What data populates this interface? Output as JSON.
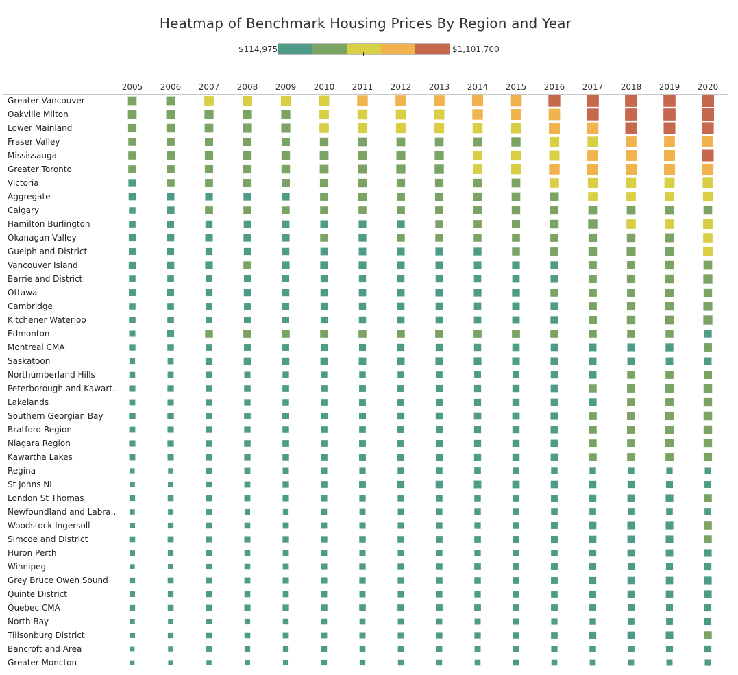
{
  "chart_data": {
    "type": "heatmap",
    "title": "Heatmap of Benchmark Housing Prices By Region and Year",
    "legend": {
      "min_label": "$114,975",
      "max_label": "$1,101,700",
      "min": 114975,
      "max": 1101700,
      "colors": [
        "#4e9c88",
        "#7aa364",
        "#d8cf45",
        "#f1b34d",
        "#c5684e"
      ]
    },
    "x": [
      "2005",
      "2006",
      "2007",
      "2008",
      "2009",
      "2010",
      "2011",
      "2012",
      "2013",
      "2014",
      "2015",
      "2016",
      "2017",
      "2018",
      "2019",
      "2020"
    ],
    "y": [
      "Greater Vancouver",
      "Oakville Milton",
      "Lower Mainland",
      "Fraser Valley",
      "Mississauga",
      "Greater Toronto",
      "Victoria",
      "Aggregate",
      "Calgary",
      "Hamilton Burlington",
      "Okanagan Valley",
      "Guelph and District",
      "Vancouver Island",
      "Barrie and District",
      "Ottawa",
      "Cambridge",
      "Kitchener Waterloo",
      "Edmonton",
      "Montreal CMA",
      "Saskatoon",
      "Northumberland Hills",
      "Peterborough and Kawart..",
      "Lakelands",
      "Southern Georgian Bay",
      "Bratford Region",
      "Niagara Region",
      "Kawartha Lakes",
      "Regina",
      "St Johns NL",
      "London St Thomas",
      "Newfoundland and Labra..",
      "Woodstock Ingersoll",
      "Simcoe and District",
      "Huron Perth",
      "Winnipeg",
      "Grey Bruce Owen Sound",
      "Quinte District",
      "Quebec CMA",
      "North Bay",
      "Tillsonburg District",
      "Bancroft and Area",
      "Greater Moncton"
    ],
    "values": [
      [
        420,
        430,
        520,
        560,
        570,
        640,
        720,
        740,
        750,
        820,
        900,
        1000,
        1050,
        1060,
        1030,
        1100
      ],
      [
        420,
        440,
        480,
        470,
        470,
        530,
        600,
        630,
        660,
        720,
        800,
        900,
        1000,
        1060,
        1050,
        1100
      ],
      [
        380,
        400,
        420,
        470,
        460,
        520,
        560,
        580,
        590,
        620,
        700,
        800,
        880,
        960,
        950,
        980
      ],
      [
        320,
        340,
        360,
        370,
        360,
        390,
        420,
        420,
        420,
        440,
        490,
        580,
        700,
        760,
        780,
        800
      ],
      [
        330,
        350,
        380,
        390,
        400,
        430,
        440,
        460,
        480,
        520,
        580,
        660,
        780,
        790,
        800,
        950
      ],
      [
        330,
        350,
        370,
        380,
        400,
        430,
        450,
        470,
        500,
        540,
        620,
        730,
        800,
        810,
        820,
        840
      ],
      [
        310,
        330,
        350,
        370,
        360,
        380,
        390,
        380,
        380,
        390,
        420,
        510,
        580,
        620,
        640,
        700
      ],
      [
        260,
        280,
        300,
        310,
        300,
        340,
        360,
        350,
        370,
        390,
        420,
        450,
        510,
        520,
        530,
        580
      ],
      [
        200,
        310,
        340,
        330,
        320,
        330,
        330,
        340,
        350,
        360,
        390,
        380,
        420,
        430,
        420,
        410
      ],
      [
        210,
        230,
        250,
        260,
        270,
        290,
        300,
        310,
        320,
        340,
        360,
        400,
        500,
        520,
        530,
        560
      ],
      [
        240,
        260,
        290,
        310,
        300,
        320,
        310,
        320,
        320,
        320,
        330,
        340,
        380,
        400,
        440,
        510
      ],
      [
        220,
        230,
        240,
        240,
        250,
        270,
        280,
        290,
        300,
        310,
        320,
        350,
        400,
        460,
        490,
        540
      ],
      [
        240,
        260,
        300,
        320,
        300,
        310,
        300,
        290,
        290,
        290,
        300,
        310,
        340,
        360,
        390,
        420
      ],
      [
        200,
        210,
        220,
        230,
        230,
        240,
        240,
        250,
        250,
        260,
        270,
        290,
        350,
        380,
        400,
        480
      ],
      [
        220,
        230,
        240,
        250,
        250,
        260,
        270,
        280,
        290,
        300,
        310,
        320,
        340,
        350,
        370,
        390
      ],
      [
        200,
        210,
        220,
        220,
        230,
        240,
        250,
        260,
        260,
        270,
        280,
        300,
        340,
        380,
        400,
        470
      ],
      [
        200,
        210,
        220,
        230,
        230,
        240,
        250,
        260,
        260,
        270,
        280,
        310,
        350,
        400,
        420,
        480
      ],
      [
        180,
        230,
        320,
        340,
        330,
        330,
        330,
        330,
        340,
        340,
        340,
        330,
        330,
        330,
        320,
        310
      ],
      [
        190,
        200,
        210,
        220,
        220,
        230,
        230,
        240,
        240,
        250,
        260,
        260,
        280,
        290,
        310,
        350
      ],
      [
        150,
        170,
        240,
        260,
        250,
        270,
        280,
        290,
        300,
        300,
        290,
        290,
        280,
        280,
        280,
        280
      ],
      [
        160,
        170,
        180,
        180,
        190,
        190,
        200,
        200,
        210,
        220,
        230,
        250,
        290,
        320,
        340,
        360
      ],
      [
        180,
        190,
        200,
        200,
        210,
        210,
        220,
        220,
        230,
        240,
        250,
        270,
        320,
        350,
        360,
        400
      ],
      [
        170,
        180,
        190,
        190,
        200,
        210,
        220,
        220,
        230,
        240,
        250,
        270,
        310,
        340,
        350,
        390
      ],
      [
        190,
        200,
        210,
        210,
        220,
        230,
        230,
        240,
        250,
        260,
        270,
        300,
        340,
        360,
        380,
        410
      ],
      [
        170,
        180,
        190,
        190,
        200,
        210,
        210,
        220,
        230,
        240,
        250,
        280,
        330,
        360,
        370,
        400
      ],
      [
        180,
        190,
        200,
        200,
        210,
        210,
        220,
        220,
        230,
        240,
        250,
        280,
        320,
        340,
        360,
        390
      ],
      [
        170,
        180,
        190,
        190,
        200,
        210,
        220,
        220,
        230,
        240,
        250,
        270,
        320,
        340,
        350,
        380
      ],
      [
        125,
        130,
        150,
        170,
        175,
        180,
        185,
        195,
        200,
        210,
        200,
        200,
        195,
        190,
        185,
        180
      ],
      [
        135,
        140,
        150,
        170,
        190,
        205,
        220,
        240,
        260,
        280,
        270,
        260,
        250,
        240,
        230,
        220
      ],
      [
        150,
        160,
        170,
        170,
        180,
        180,
        190,
        190,
        200,
        200,
        210,
        220,
        250,
        280,
        300,
        330
      ],
      [
        130,
        135,
        140,
        145,
        150,
        160,
        170,
        175,
        185,
        195,
        200,
        205,
        210,
        210,
        205,
        210
      ],
      [
        140,
        150,
        160,
        160,
        170,
        170,
        180,
        180,
        190,
        190,
        200,
        220,
        260,
        290,
        300,
        330
      ],
      [
        160,
        170,
        180,
        180,
        190,
        190,
        200,
        200,
        210,
        210,
        220,
        230,
        260,
        280,
        290,
        320
      ],
      [
        140,
        150,
        160,
        160,
        170,
        170,
        180,
        180,
        190,
        190,
        200,
        210,
        240,
        270,
        280,
        300
      ],
      [
        128,
        140,
        150,
        160,
        170,
        180,
        190,
        195,
        200,
        210,
        215,
        220,
        220,
        225,
        230,
        240
      ],
      [
        150,
        160,
        170,
        170,
        180,
        180,
        190,
        190,
        200,
        200,
        210,
        220,
        240,
        260,
        270,
        300
      ],
      [
        140,
        150,
        155,
        160,
        165,
        170,
        175,
        180,
        185,
        190,
        200,
        210,
        230,
        260,
        270,
        300
      ],
      [
        150,
        160,
        170,
        180,
        190,
        200,
        205,
        210,
        215,
        215,
        215,
        215,
        220,
        225,
        230,
        240
      ],
      [
        130,
        135,
        140,
        150,
        155,
        160,
        165,
        170,
        170,
        175,
        180,
        185,
        195,
        210,
        220,
        230
      ],
      [
        140,
        150,
        160,
        160,
        170,
        170,
        175,
        180,
        185,
        190,
        200,
        210,
        240,
        270,
        290,
        320
      ],
      [
        120,
        130,
        140,
        150,
        150,
        155,
        160,
        165,
        170,
        175,
        180,
        185,
        200,
        220,
        230,
        240
      ],
      [
        118,
        125,
        130,
        140,
        145,
        150,
        150,
        155,
        155,
        160,
        160,
        160,
        165,
        170,
        175,
        180
      ]
    ]
  }
}
